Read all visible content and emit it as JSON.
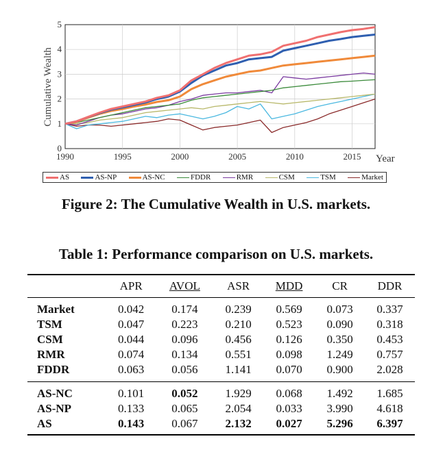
{
  "chart_data": {
    "type": "line",
    "ylabel": "Cumulative Wealth",
    "xlabel": "Year",
    "xlim": [
      1990,
      2017
    ],
    "ylim": [
      0,
      5
    ],
    "xticks": [
      "1990",
      "1995",
      "2000",
      "2005",
      "2010",
      "2015"
    ],
    "yticks": [
      "0",
      "1",
      "2",
      "3",
      "4",
      "5"
    ],
    "grid": true,
    "legend_position": "bottom",
    "series": [
      {
        "name": "AS",
        "color": "#f07070",
        "width": 3,
        "x": [
          1990,
          1991,
          1992,
          1993,
          1994,
          1995,
          1996,
          1997,
          1998,
          1999,
          2000,
          2001,
          2002,
          2003,
          2004,
          2005,
          2006,
          2007,
          2008,
          2009,
          2010,
          2011,
          2012,
          2013,
          2014,
          2015,
          2016,
          2017
        ],
        "y": [
          1.0,
          1.1,
          1.28,
          1.45,
          1.6,
          1.7,
          1.8,
          1.9,
          2.05,
          2.15,
          2.35,
          2.75,
          3.0,
          3.25,
          3.45,
          3.6,
          3.75,
          3.8,
          3.9,
          4.15,
          4.25,
          4.35,
          4.5,
          4.6,
          4.7,
          4.78,
          4.83,
          4.9
        ]
      },
      {
        "name": "AS-NP",
        "color": "#2f5fb0",
        "width": 3,
        "x": [
          1990,
          1991,
          1992,
          1993,
          1994,
          1995,
          1996,
          1997,
          1998,
          1999,
          2000,
          2001,
          2002,
          2003,
          2004,
          2005,
          2006,
          2007,
          2008,
          2009,
          2010,
          2011,
          2012,
          2013,
          2014,
          2015,
          2016,
          2017
        ],
        "y": [
          1.0,
          1.1,
          1.27,
          1.43,
          1.57,
          1.66,
          1.76,
          1.86,
          2.0,
          2.1,
          2.3,
          2.65,
          2.95,
          3.15,
          3.35,
          3.45,
          3.6,
          3.65,
          3.7,
          3.95,
          4.05,
          4.15,
          4.25,
          4.35,
          4.42,
          4.5,
          4.55,
          4.6
        ]
      },
      {
        "name": "AS-NC",
        "color": "#f08a3a",
        "width": 3,
        "x": [
          1990,
          1991,
          1992,
          1993,
          1994,
          1995,
          1996,
          1997,
          1998,
          1999,
          2000,
          2001,
          2002,
          2003,
          2004,
          2005,
          2006,
          2007,
          2008,
          2009,
          2010,
          2011,
          2012,
          2013,
          2014,
          2015,
          2016,
          2017
        ],
        "y": [
          1.0,
          1.08,
          1.25,
          1.4,
          1.52,
          1.6,
          1.7,
          1.78,
          1.88,
          1.95,
          2.1,
          2.4,
          2.6,
          2.75,
          2.9,
          3.0,
          3.1,
          3.15,
          3.25,
          3.35,
          3.4,
          3.45,
          3.5,
          3.55,
          3.6,
          3.65,
          3.7,
          3.75
        ]
      },
      {
        "name": "FDDR",
        "color": "#3a8a3a",
        "width": 1.3,
        "x": [
          1990,
          1991,
          1992,
          1993,
          1994,
          1995,
          1996,
          1997,
          1998,
          1999,
          2000,
          2001,
          2002,
          2003,
          2004,
          2005,
          2006,
          2007,
          2008,
          2009,
          2010,
          2011,
          2012,
          2013,
          2014,
          2015,
          2016,
          2017
        ],
        "y": [
          1.0,
          1.05,
          1.15,
          1.25,
          1.35,
          1.45,
          1.55,
          1.65,
          1.7,
          1.75,
          1.8,
          1.95,
          2.05,
          2.1,
          2.15,
          2.2,
          2.25,
          2.3,
          2.35,
          2.45,
          2.5,
          2.55,
          2.6,
          2.65,
          2.7,
          2.72,
          2.75,
          2.78
        ]
      },
      {
        "name": "RMR",
        "color": "#7a3aa0",
        "width": 1.3,
        "x": [
          1990,
          1991,
          1992,
          1993,
          1994,
          1995,
          1996,
          1997,
          1998,
          1999,
          2000,
          2001,
          2002,
          2003,
          2004,
          2005,
          2006,
          2007,
          2008,
          2009,
          2010,
          2011,
          2012,
          2013,
          2014,
          2015,
          2016,
          2017
        ],
        "y": [
          1.0,
          0.95,
          1.1,
          1.25,
          1.35,
          1.4,
          1.5,
          1.6,
          1.65,
          1.75,
          1.9,
          2.0,
          2.15,
          2.2,
          2.25,
          2.25,
          2.3,
          2.35,
          2.25,
          2.9,
          2.85,
          2.8,
          2.85,
          2.9,
          2.95,
          3.0,
          3.05,
          3.0
        ]
      },
      {
        "name": "CSM",
        "color": "#b8b86a",
        "width": 1.3,
        "x": [
          1990,
          1991,
          1992,
          1993,
          1994,
          1995,
          1996,
          1997,
          1998,
          1999,
          2000,
          2001,
          2002,
          2003,
          2004,
          2005,
          2006,
          2007,
          2008,
          2009,
          2010,
          2011,
          2012,
          2013,
          2014,
          2015,
          2016,
          2017
        ],
        "y": [
          1.0,
          1.0,
          1.05,
          1.15,
          1.2,
          1.25,
          1.35,
          1.45,
          1.5,
          1.55,
          1.6,
          1.65,
          1.6,
          1.7,
          1.75,
          1.8,
          1.85,
          1.9,
          1.85,
          1.8,
          1.85,
          1.9,
          1.95,
          2.0,
          2.05,
          2.1,
          2.15,
          2.2
        ]
      },
      {
        "name": "TSM",
        "color": "#4ab8e0",
        "width": 1.3,
        "x": [
          1990,
          1991,
          1992,
          1993,
          1994,
          1995,
          1996,
          1997,
          1998,
          1999,
          2000,
          2001,
          2002,
          2003,
          2004,
          2005,
          2006,
          2007,
          2008,
          2009,
          2010,
          2011,
          2012,
          2013,
          2014,
          2015,
          2016,
          2017
        ],
        "y": [
          1.0,
          0.8,
          0.95,
          1.0,
          1.05,
          1.1,
          1.2,
          1.3,
          1.25,
          1.35,
          1.4,
          1.3,
          1.2,
          1.3,
          1.45,
          1.7,
          1.6,
          1.8,
          1.2,
          1.3,
          1.4,
          1.55,
          1.7,
          1.8,
          1.9,
          2.0,
          2.1,
          2.2
        ]
      },
      {
        "name": "Market",
        "color": "#8a2a2a",
        "width": 1.3,
        "x": [
          1990,
          1991,
          1992,
          1993,
          1994,
          1995,
          1996,
          1997,
          1998,
          1999,
          2000,
          2001,
          2002,
          2003,
          2004,
          2005,
          2006,
          2007,
          2008,
          2009,
          2010,
          2011,
          2012,
          2013,
          2014,
          2015,
          2016,
          2017
        ],
        "y": [
          1.0,
          0.9,
          0.95,
          0.95,
          0.9,
          0.95,
          1.0,
          1.05,
          1.1,
          1.2,
          1.15,
          0.95,
          0.75,
          0.85,
          0.9,
          0.95,
          1.05,
          1.15,
          0.65,
          0.85,
          0.95,
          1.05,
          1.2,
          1.4,
          1.55,
          1.7,
          1.85,
          2.0
        ]
      }
    ]
  },
  "figure_caption": "Figure 2: The Cumulative Wealth in U.S. markets.",
  "table_caption": "Table 1: Performance comparison on U.S. markets.",
  "table": {
    "headers": [
      "",
      "APR",
      "AVOL",
      "ASR",
      "MDD",
      "CR",
      "DDR"
    ],
    "group1": [
      {
        "name": "Market",
        "values": [
          "0.042",
          "0.174",
          "0.239",
          "0.569",
          "0.073",
          "0.337"
        ]
      },
      {
        "name": "TSM",
        "values": [
          "0.047",
          "0.223",
          "0.210",
          "0.523",
          "0.090",
          "0.318"
        ]
      },
      {
        "name": "CSM",
        "values": [
          "0.044",
          "0.096",
          "0.456",
          "0.126",
          "0.350",
          "0.453"
        ]
      },
      {
        "name": "RMR",
        "values": [
          "0.074",
          "0.134",
          "0.551",
          "0.098",
          "1.249",
          "0.757"
        ]
      },
      {
        "name": "FDDR",
        "values": [
          "0.063",
          "0.056",
          "1.141",
          "0.070",
          "0.900",
          "2.028"
        ]
      }
    ],
    "group2": [
      {
        "name": "AS-NC",
        "values": [
          "0.101",
          "0.052",
          "1.929",
          "0.068",
          "1.492",
          "1.685"
        ]
      },
      {
        "name": "AS-NP",
        "values": [
          "0.133",
          "0.065",
          "2.054",
          "0.033",
          "3.990",
          "4.618"
        ]
      },
      {
        "name": "AS",
        "values": [
          "0.143",
          "0.067",
          "2.132",
          "0.027",
          "5.296",
          "6.397"
        ]
      }
    ]
  }
}
